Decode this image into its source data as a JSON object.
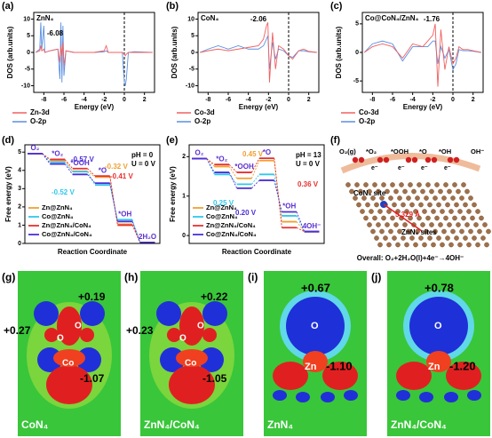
{
  "chart_data": [
    {
      "type": "line",
      "panel_label": "(a)",
      "title": "ZnN₄",
      "annotation": "-6.08",
      "xlabel": "Energy (eV)",
      "ylabel": "DOS (arb.units)",
      "xlim": [
        -9,
        3
      ],
      "xticks": [
        -8,
        -6,
        -4,
        -2,
        0,
        2
      ],
      "ylim": [
        -12,
        12
      ],
      "yticks": [
        -10,
        -5,
        0,
        5,
        10
      ],
      "vline": 0,
      "x": [
        -8.8,
        -8.4,
        -8.3,
        -8.2,
        -8.0,
        -7.9,
        -7.4,
        -6.6,
        -6.4,
        -6.3,
        -6.2,
        -6.1,
        -6.0,
        -5.8,
        -5,
        -3,
        -2,
        -1.8,
        -1.6,
        -0.2,
        0,
        0.1,
        0.2,
        0.4,
        1,
        2.8
      ],
      "series": [
        {
          "name": "Zn-3d",
          "color": "#f06060",
          "values": [
            0,
            0.5,
            2,
            0.5,
            1,
            0,
            0.5,
            1,
            -3,
            2,
            -1,
            3,
            -4,
            0.5,
            0,
            0,
            0.5,
            2,
            0,
            0,
            -0.5,
            -1,
            -0.5,
            0,
            0,
            0
          ]
        },
        {
          "name": "O-2p",
          "color": "#5b8fe0",
          "values": [
            0,
            1,
            9,
            1,
            8,
            0,
            0.5,
            1,
            -8,
            9,
            -9,
            8,
            -7,
            0.5,
            0,
            0,
            0.2,
            0.5,
            0,
            0,
            -9,
            -10,
            -8,
            0,
            0.2,
            0
          ]
        }
      ]
    },
    {
      "type": "line",
      "panel_label": "(b)",
      "title": "CoN₄",
      "annotation": "-2.06",
      "xlabel": "Energy (eV)",
      "ylabel": "DOS (arb.units)",
      "xlim": [
        -9,
        3
      ],
      "xticks": [
        -8,
        -6,
        -4,
        -2,
        0,
        2
      ],
      "ylim": [
        -12,
        12
      ],
      "yticks": [
        -10,
        -5,
        0,
        5,
        10
      ],
      "vline": 0,
      "x": [
        -8.8,
        -8.0,
        -7.0,
        -6.0,
        -5.0,
        -4.0,
        -3.0,
        -2.5,
        -2.2,
        -2.06,
        -1.9,
        -1.6,
        -1.3,
        -1.0,
        -0.5,
        0,
        0.4,
        1,
        1.5,
        2,
        2.8
      ],
      "series": [
        {
          "name": "Co-3d",
          "color": "#f06060",
          "values": [
            0,
            0.5,
            1,
            0.5,
            1,
            1.5,
            2,
            4,
            8,
            9,
            -9,
            6,
            -5,
            2,
            1,
            -1,
            -2,
            0.5,
            1,
            0.3,
            0
          ]
        },
        {
          "name": "O-2p",
          "color": "#5b8fe0",
          "values": [
            0,
            1,
            2,
            1,
            2,
            1,
            1,
            2,
            4,
            5,
            -5,
            3,
            -2,
            1,
            0.5,
            -1,
            -1.5,
            0.5,
            0.5,
            0.2,
            0
          ]
        }
      ]
    },
    {
      "type": "line",
      "panel_label": "(c)",
      "title": "Co@CoN₄/ZnN₄",
      "annotation": "-1.76",
      "xlabel": "Energy (eV)",
      "ylabel": "DOS (arb.units)",
      "xlim": [
        -9,
        3
      ],
      "xticks": [
        -8,
        -6,
        -4,
        -2,
        0,
        2
      ],
      "ylim": [
        -7,
        7
      ],
      "yticks": [
        -5,
        0,
        5
      ],
      "vline": 0,
      "x": [
        -8.8,
        -8,
        -7,
        -6,
        -5,
        -4,
        -3,
        -2.5,
        -2,
        -1.76,
        -1.5,
        -1.2,
        -0.8,
        -0.4,
        0,
        0.3,
        0.6,
        1,
        1.5,
        2,
        2.8
      ],
      "series": [
        {
          "name": "Co-3d",
          "color": "#f06060",
          "values": [
            0,
            1,
            1.5,
            1,
            -1,
            1.5,
            1,
            2,
            3,
            5,
            -6,
            4,
            -3,
            1,
            -2,
            -1,
            1,
            0.5,
            0.5,
            0.3,
            0
          ]
        },
        {
          "name": "O-2p",
          "color": "#5b8fe0",
          "values": [
            0,
            1.5,
            2,
            1.5,
            -1.5,
            1,
            1,
            1,
            2,
            2,
            -2,
            1,
            -1,
            0.5,
            -3,
            -2,
            0.5,
            0.3,
            0.3,
            0.2,
            0
          ]
        }
      ]
    },
    {
      "type": "step",
      "panel_label": "(d)",
      "xlabel": "Reaction Coordinate",
      "ylabel": "Free energy (eV)",
      "label_color": "#5a2fd0",
      "categories": [
        "O₂",
        "*O₂",
        "*OOH",
        "*O",
        "*OH",
        "2H₂O"
      ],
      "ylim": [
        0,
        5.4
      ],
      "yticks": [
        0,
        1,
        2,
        3,
        4,
        5
      ],
      "conditions": [
        "pH = 0",
        "U = 0 V"
      ],
      "series": [
        {
          "name": "Zn@ZnN₄",
          "color": "#f0a030",
          "values": [
            4.92,
            4.55,
            3.95,
            3.63,
            1.05,
            0.05
          ]
        },
        {
          "name": "Co@ZnN₄",
          "color": "#30c8ec",
          "values": [
            4.92,
            4.45,
            3.93,
            3.2,
            1.3,
            0.05
          ]
        },
        {
          "name": "Zn@ZnN₄/CoN₄",
          "color": "#e83030",
          "values": [
            4.92,
            4.6,
            4.1,
            3.69,
            1.0,
            0.05
          ]
        },
        {
          "name": "Co@ZnN₄/CoN₄",
          "color": "#4a30d8",
          "values": [
            4.92,
            4.35,
            3.78,
            3.3,
            1.2,
            0.05
          ]
        }
      ],
      "annotations": [
        {
          "text": "-0.57 V",
          "color": "#4a30d8"
        },
        {
          "text": "-0.32 V",
          "color": "#f0a030"
        },
        {
          "text": "-0.41 V",
          "color": "#e83030"
        },
        {
          "text": "-0.52 V",
          "color": "#30c8ec"
        }
      ]
    },
    {
      "type": "step",
      "panel_label": "(e)",
      "xlabel": "Reaction Coordinate",
      "ylabel": "Free energy (eV)",
      "label_color": "#5a2fd0",
      "categories": [
        "O₂",
        "*O₂",
        "*OOH",
        "*O",
        "*OH",
        "4OH⁻"
      ],
      "ylim": [
        -0.2,
        2.3
      ],
      "yticks": [
        0,
        1,
        2
      ],
      "conditions": [
        "pH = 13",
        "U = 0 V"
      ],
      "series": [
        {
          "name": "Zn@ZnN₄",
          "color": "#f0a030",
          "values": [
            1.95,
            1.75,
            1.45,
            1.9,
            0.35,
            0.1
          ]
        },
        {
          "name": "Co@ZnN₄",
          "color": "#30c8ec",
          "values": [
            1.95,
            1.55,
            1.3,
            1.55,
            0.5,
            0.1
          ]
        },
        {
          "name": "Zn@ZnN₄/CoN₄",
          "color": "#e83030",
          "values": [
            1.95,
            1.8,
            1.6,
            1.96,
            0.2,
            0.1
          ]
        },
        {
          "name": "Co@ZnN₄/CoN₄",
          "color": "#4a30d8",
          "values": [
            1.95,
            1.6,
            1.2,
            1.4,
            0.6,
            0.1
          ]
        }
      ],
      "annotations": [
        {
          "text": "0.45 V",
          "color": "#f0a030"
        },
        {
          "text": "0.36 V",
          "color": "#e83030"
        },
        {
          "text": "0.25 V",
          "color": "#30c8ec"
        },
        {
          "text": "0.20 V",
          "color": "#4a30d8"
        }
      ]
    }
  ],
  "panel_f": {
    "label": "(f)",
    "steps": [
      "O₂(g)",
      "*O₂",
      "*OOH",
      "*O",
      "*OH",
      "OH⁻"
    ],
    "electrons": [
      "e⁻",
      "e⁻",
      "e⁻",
      "e⁻"
    ],
    "site": "CoN₄ site",
    "distance": "5.329 Å",
    "sites": "ZnN₄ sites",
    "overall": "Overall: O₂+2H₂O(l)+4e⁻→4OH⁻"
  },
  "panels_g_j": [
    {
      "label": "(g)",
      "charges": [
        "+0.19",
        "+0.27",
        "-1.07"
      ],
      "atoms": [
        "O",
        "O",
        "Co"
      ],
      "caption": "CoN₄"
    },
    {
      "label": "(h)",
      "charges": [
        "+0.22",
        "+0.23",
        "-1.05"
      ],
      "atoms": [
        "O",
        "O",
        "Co"
      ],
      "caption": "ZnN₄/CoN₄"
    },
    {
      "label": "(i)",
      "charges": [
        "+0.67",
        "-1.10"
      ],
      "atoms": [
        "O",
        "Zn"
      ],
      "caption": "ZnN₄"
    },
    {
      "label": "(j)",
      "charges": [
        "+0.78",
        "-1.20"
      ],
      "atoms": [
        "O",
        "Zn"
      ],
      "caption": "ZnN₄/CoN₄"
    }
  ]
}
